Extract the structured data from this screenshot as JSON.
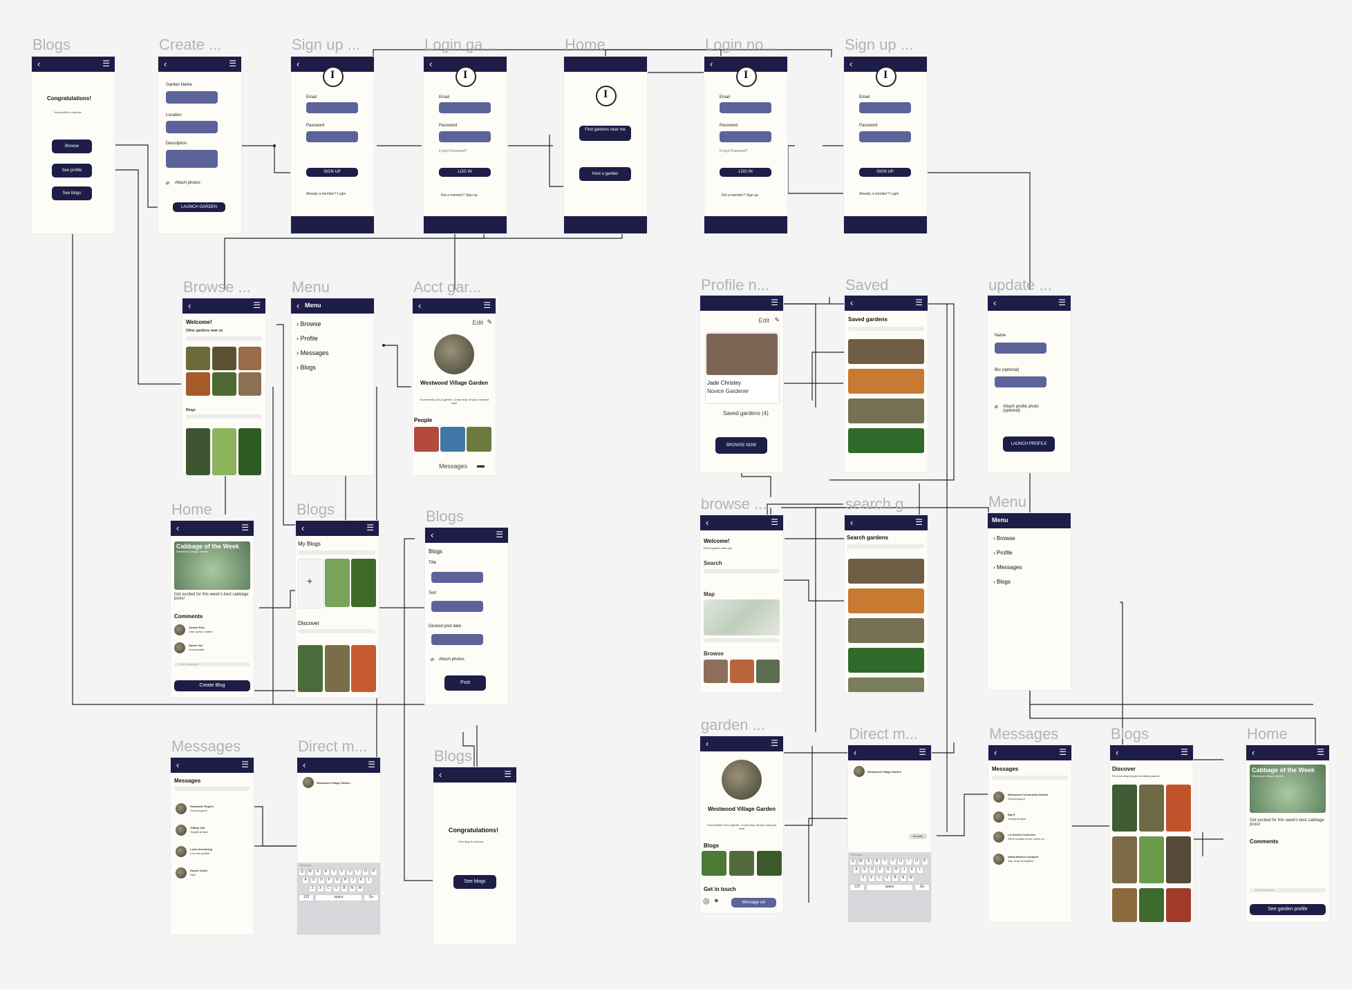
{
  "frames": {
    "blogs_congrats": {
      "title": "Blogs",
      "heading": "Congratulations!",
      "sub": "Your profile is now live.",
      "browse": "Browse",
      "see_profile": "See profile",
      "see_blogs": "See blogs"
    },
    "create_garden": {
      "title": "Create ...",
      "garden_name": "Garden Name",
      "location": "Location",
      "description": "Description",
      "attach": "Attach photos",
      "launch": "LAUNCH GARDEN"
    },
    "signup_garden": {
      "title": "Sign up ...",
      "email": "Email",
      "password": "Password",
      "cta": "SIGN UP",
      "already": "Already a member? Login"
    },
    "login_garden": {
      "title": "Login ga...",
      "email": "Email",
      "password": "Password",
      "forgot": "Forgot Password?",
      "cta": "LOG IN",
      "not_member": "Not a member? Sign up"
    },
    "home": {
      "title": "Home",
      "find": "Find gardens near me",
      "host": "Host a garden"
    },
    "login_no": {
      "title": "Login no...",
      "email": "Email",
      "password": "Password",
      "forgot": "Forgot Password?",
      "cta": "LOG IN",
      "not_member": "Not a member? Sign up"
    },
    "signup_user": {
      "title": "Sign up ...",
      "email": "Email",
      "password": "Password",
      "cta": "SIGN UP",
      "already": "Already a member? Login"
    },
    "browse": {
      "title": "Browse ...",
      "welcome": "Welcome!",
      "other": "Other gardens near us",
      "search": "Search",
      "blogs": "Blogs"
    },
    "menu1": {
      "title": "Menu",
      "header": "Menu",
      "items": [
        "Browse",
        "Profile",
        "Messages",
        "Blogs"
      ]
    },
    "acct_garden": {
      "title": "Acct gar...",
      "edit": "Edit",
      "name": "Westwood Village Garden",
      "desc": "Your friendly UCLA garden. Come drop off your compost now!",
      "people": "People",
      "messages": "Messages"
    },
    "profile": {
      "title": "Profile n...",
      "edit": "Edit",
      "name": "Jade Christey",
      "role": "Novice Gardener",
      "saved": "Saved gardens (4)",
      "browse_now": "BROWSE NOW"
    },
    "saved": {
      "title": "Saved",
      "heading": "Saved gardens",
      "search": "Search"
    },
    "update": {
      "title": "update ...",
      "name": "Name",
      "bio": "Bio (optional)",
      "attach": "Attach profile photo (optional)",
      "launch": "LAUNCH PROFILE"
    },
    "home2": {
      "title": "Home",
      "card_title": "Cabbage of the Week",
      "card_sub": "Westwood Village Garden",
      "blurb": "Get excited for this week's best cabbage picks!",
      "comments": "Comments",
      "c1_name": "Janelle Ruiz",
      "c1_text": "I like option 3 better",
      "c2_name": "Daniel Yan",
      "c2_text": "Great article!",
      "add_comment": "Add a comment",
      "cta": "Create Blog"
    },
    "blogs_mine": {
      "title": "Blogs",
      "my": "My Blogs",
      "search": "Search",
      "discover": "Discover"
    },
    "blogs_post": {
      "title": "Blogs",
      "heading": "Blogs",
      "title_lbl": "Title",
      "text_lbl": "Text",
      "date_lbl": "Desired post date",
      "attach": "Attach photos",
      "post": "Post"
    },
    "browse2": {
      "title": "browse ...",
      "welcome": "Welcome!",
      "find": "Find a garden near you.",
      "search": "Search",
      "map": "Map",
      "browse": "Browse"
    },
    "search_gardens": {
      "title": "search g...",
      "heading": "Search gardens",
      "search": "Search"
    },
    "menu2": {
      "title": "Menu",
      "header": "Menu",
      "items": [
        "Browse",
        "Profile",
        "Messages",
        "Blogs"
      ]
    },
    "messages1": {
      "title": "Messages",
      "heading": "Messages",
      "search": "Search",
      "msgs": [
        {
          "name": "Stephanie Rogers",
          "text": "Sounds good!"
        },
        {
          "name": "Tiffany Yan",
          "text": "Tonight at 6pm"
        },
        {
          "name": "Louis Armstrong",
          "text": "Love the profile!"
        },
        {
          "name": "Robert Smith",
          "text": "Hey!"
        }
      ]
    },
    "direct1": {
      "title": "Direct m...",
      "to": "Westwood Village Garden",
      "placeholder": "Message"
    },
    "blogs_congrats2": {
      "title": "Blogs",
      "heading": "Congratulations!",
      "sub": "Your blog is now live.",
      "cta": "See blogs"
    },
    "garden_profile": {
      "title": "garden ...",
      "name": "Westwood Village Garden",
      "desc": "Your friendly UCLA garden. Come drop off your compost now!",
      "blogs": "Blogs",
      "contact": "Get in touch",
      "cta": "Message us!"
    },
    "direct2": {
      "title": "Direct m...",
      "to": "Westwood Village Garden",
      "bubble": "Sounds!",
      "placeholder": "Message"
    },
    "messages2": {
      "title": "Messages",
      "heading": "Messages",
      "search": "Search",
      "msgs": [
        {
          "name": "Westwood Community Garden",
          "text": "Sounds good!"
        },
        {
          "name": "Big H",
          "text": "Tonight at 6pm"
        },
        {
          "name": "LA Garden Collective",
          "text": "We're located at the corner of..."
        },
        {
          "name": "Santa Monica Compost",
          "text": "Yep, drop off anytime"
        }
      ]
    },
    "blogs_discover": {
      "title": "Blogs",
      "heading": "Discover",
      "sub": "Find out what people are talking about."
    },
    "home3": {
      "title": "Home",
      "card_title": "Cabbage of the Week",
      "card_sub": "Westwood Village Garden",
      "blurb": "Get excited for this week's best cabbage picks!",
      "comments": "Comments",
      "add_comment": "Add a comment",
      "cta": "See garden profile"
    }
  },
  "keyboard": {
    "row1": [
      "Q",
      "W",
      "E",
      "R",
      "T",
      "Y",
      "U",
      "I",
      "O",
      "P"
    ],
    "row2": [
      "A",
      "S",
      "D",
      "F",
      "G",
      "H",
      "J",
      "K",
      "L"
    ],
    "row3": [
      "Z",
      "X",
      "C",
      "V",
      "B",
      "N",
      "M"
    ],
    "num": "123",
    "space": "space",
    "go": "Go"
  },
  "colors": {
    "navy": "#1d1d48",
    "field": "#5c6399",
    "cream": "#fdfcf6",
    "canvas": "#f4f4f4",
    "title_gray": "#b3b3b3"
  }
}
